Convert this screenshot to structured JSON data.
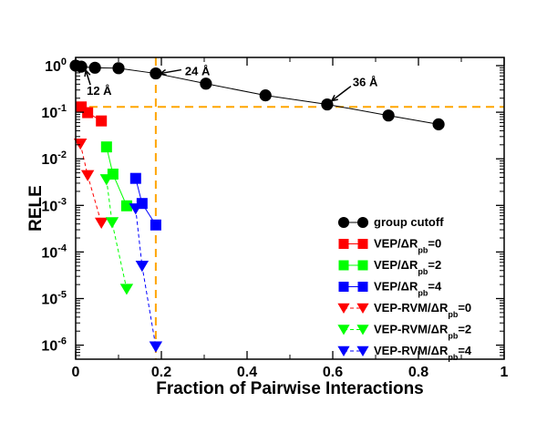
{
  "chart_data": {
    "type": "line",
    "title": "",
    "xlabel": "Fraction of Pairwise Interactions",
    "ylabel": "RELE",
    "xlim": [
      0,
      1
    ],
    "ylim": [
      5e-07,
      1.5
    ],
    "yscale": "log",
    "grid": false,
    "legend_position": "bottom-right",
    "x_ticks": [
      {
        "value": 0,
        "label": "0"
      },
      {
        "value": 0.2,
        "label": "0.2"
      },
      {
        "value": 0.4,
        "label": "0.4"
      },
      {
        "value": 0.6,
        "label": "0.6"
      },
      {
        "value": 0.8,
        "label": "0.8"
      },
      {
        "value": 1,
        "label": "1"
      }
    ],
    "y_ticks": [
      {
        "value": 1,
        "base": "10",
        "exp": "0"
      },
      {
        "value": 0.1,
        "base": "10",
        "exp": "-1"
      },
      {
        "value": 0.01,
        "base": "10",
        "exp": "-2"
      },
      {
        "value": 0.001,
        "base": "10",
        "exp": "-3"
      },
      {
        "value": 0.0001,
        "base": "10",
        "exp": "-4"
      },
      {
        "value": 1e-05,
        "base": "10",
        "exp": "-5"
      },
      {
        "value": 1e-06,
        "base": "10",
        "exp": "-6"
      }
    ],
    "series": [
      {
        "name": "group cutoff",
        "legend_main": "group cutoff",
        "legend_sub": "",
        "legend_tail": "",
        "color": "#000000",
        "marker": "circle",
        "dashed": false,
        "x": [
          0.0,
          0.013,
          0.045,
          0.1,
          0.187,
          0.304,
          0.443,
          0.587,
          0.73,
          0.847
        ],
        "y": [
          1.0,
          0.95,
          0.9,
          0.88,
          0.68,
          0.41,
          0.23,
          0.147,
          0.085,
          0.055
        ]
      },
      {
        "name": "VEP/ΔRpb=0",
        "legend_main": "VEP/ΔR",
        "legend_sub": "pb",
        "legend_tail": "=0",
        "color": "#ff0000",
        "marker": "square",
        "dashed": false,
        "x": [
          0.013,
          0.028,
          0.06
        ],
        "y": [
          0.13,
          0.098,
          0.065
        ]
      },
      {
        "name": "VEP/ΔRpb=2",
        "legend_main": "VEP/ΔR",
        "legend_sub": "pb",
        "legend_tail": "=2",
        "color": "#00ff00",
        "marker": "square",
        "dashed": false,
        "x": [
          0.072,
          0.087,
          0.119
        ],
        "y": [
          0.018,
          0.0047,
          0.00098
        ]
      },
      {
        "name": "VEP/ΔRpb=4",
        "legend_main": "VEP/ΔR",
        "legend_sub": "pb",
        "legend_tail": "=4",
        "color": "#0000ff",
        "marker": "square",
        "dashed": false,
        "x": [
          0.14,
          0.155,
          0.187
        ],
        "y": [
          0.0038,
          0.0011,
          0.00038
        ]
      },
      {
        "name": "VEP-RVM/ΔRpb=0",
        "legend_main": "VEP-RVM/ΔR",
        "legend_sub": "pb",
        "legend_tail": "=0",
        "color": "#ff0000",
        "marker": "triangle-down",
        "dashed": true,
        "x": [
          0.011,
          0.028,
          0.06
        ],
        "y": [
          0.021,
          0.0044,
          0.00042
        ]
      },
      {
        "name": "VEP-RVM/ΔRpb=2",
        "legend_main": "VEP-RVM/ΔR",
        "legend_sub": "pb",
        "legend_tail": "=2",
        "color": "#00ff00",
        "marker": "triangle-down",
        "dashed": true,
        "x": [
          0.072,
          0.085,
          0.119
        ],
        "y": [
          0.0036,
          0.00043,
          1.6e-05
        ]
      },
      {
        "name": "VEP-RVM/ΔRpb=4",
        "legend_main": "VEP-RVM/ΔR",
        "legend_sub": "pb",
        "legend_tail": "=4",
        "color": "#0000ff",
        "marker": "triangle-down",
        "dashed": true,
        "x": [
          0.14,
          0.155,
          0.187
        ],
        "y": [
          0.00085,
          5e-05,
          9.3e-07
        ]
      }
    ],
    "reference_lines": [
      {
        "orientation": "vertical",
        "value": 0.187,
        "color": "#ffa500",
        "style": "dashed"
      },
      {
        "orientation": "horizontal",
        "value": 0.13,
        "color": "#ffa500",
        "style": "dashed"
      }
    ],
    "annotations": [
      {
        "text": "12 Å",
        "point_x": 0.013,
        "point_y": 0.95
      },
      {
        "text": "24 Å",
        "point_x": 0.187,
        "point_y": 0.68
      },
      {
        "text": "36 Å",
        "point_x": 0.587,
        "point_y": 0.147
      }
    ]
  }
}
